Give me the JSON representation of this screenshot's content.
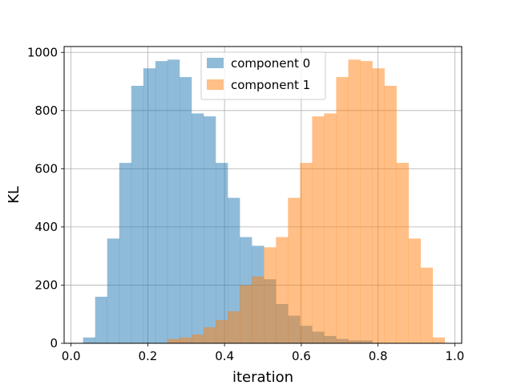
{
  "chart_data": {
    "type": "bar",
    "subtype": "histogram",
    "xlabel": "iteration",
    "ylabel": "KL",
    "xlim": [
      -0.018,
      1.018
    ],
    "ylim": [
      0,
      1020
    ],
    "xticks": [
      0.0,
      0.2,
      0.4,
      0.6,
      0.8,
      1.0
    ],
    "xtick_labels": [
      "0.0",
      "0.2",
      "0.4",
      "0.6",
      "0.8",
      "1.0"
    ],
    "yticks": [
      0,
      200,
      400,
      600,
      800,
      1000
    ],
    "ytick_labels": [
      "0",
      "200",
      "400",
      "600",
      "800",
      "1000"
    ],
    "grid": true,
    "legend_position": "top-center",
    "bin_start": 0.0314,
    "bin_width": 0.0314,
    "series": [
      {
        "name": "component 0",
        "color": "#1f77b4",
        "alpha": 0.5,
        "counts": [
          20,
          160,
          360,
          620,
          885,
          945,
          970,
          975,
          915,
          790,
          780,
          620,
          500,
          365,
          335,
          220,
          135,
          95,
          60,
          40,
          25,
          15,
          10,
          10
        ]
      },
      {
        "name": "component 1",
        "color": "#ff7f0e",
        "alpha": 0.5,
        "bin_start": 0.2514,
        "counts": [
          15,
          20,
          30,
          55,
          80,
          110,
          200,
          230,
          330,
          365,
          500,
          620,
          780,
          790,
          915,
          975,
          970,
          945,
          885,
          620,
          360,
          260,
          20
        ]
      }
    ]
  }
}
